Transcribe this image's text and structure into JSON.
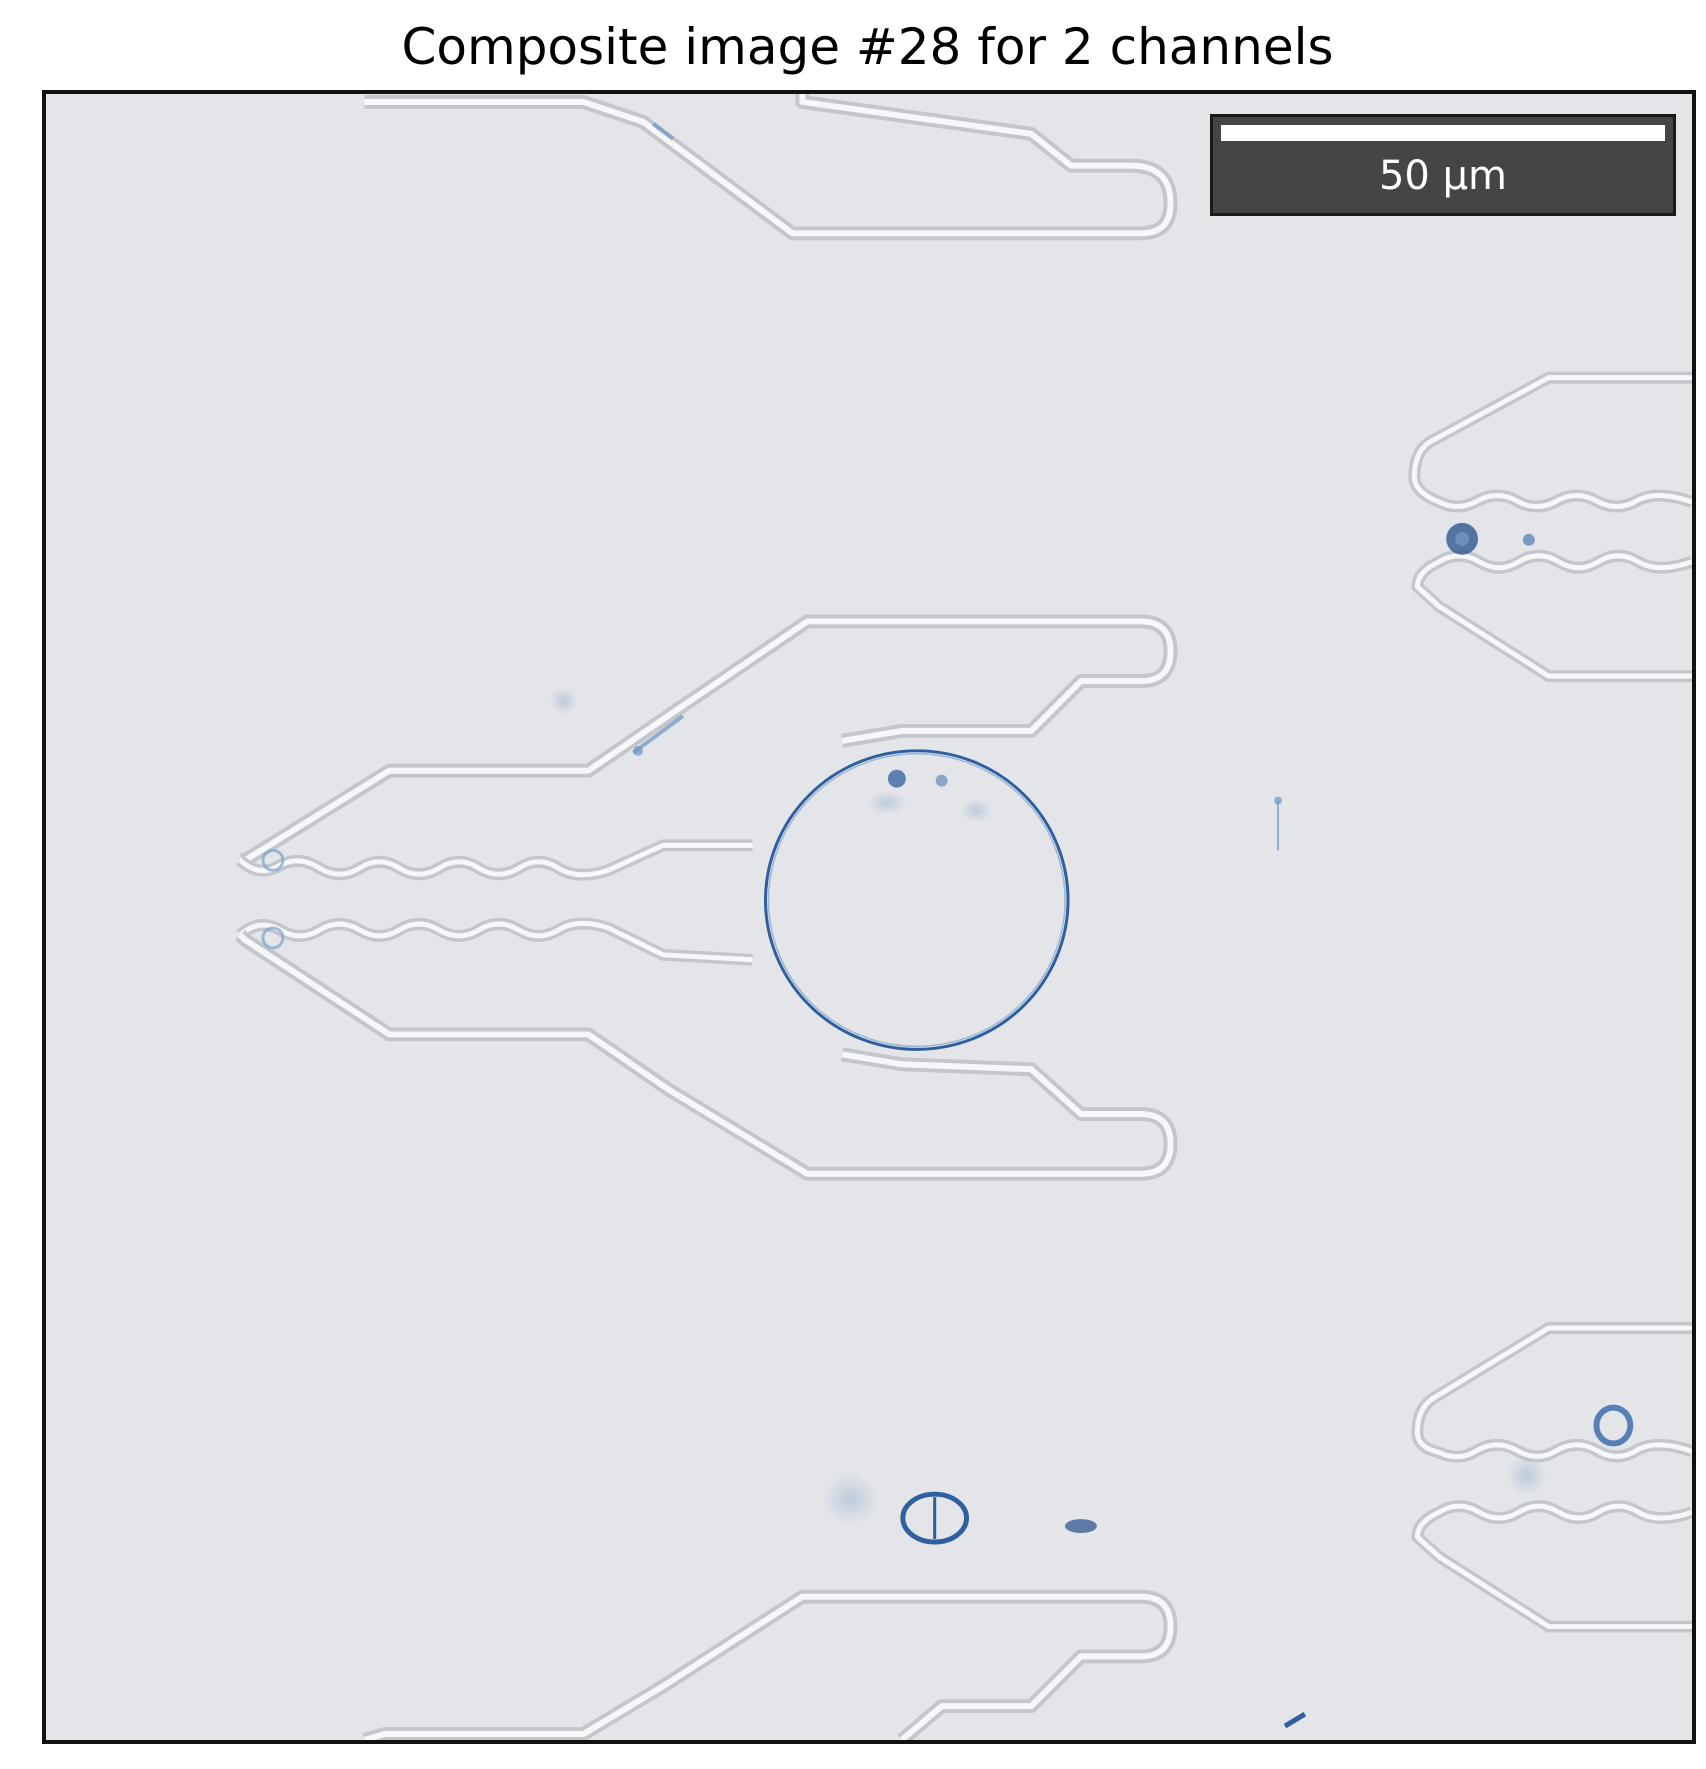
{
  "title": "Composite image #28 for 2 channels",
  "scale_bar": {
    "label": "50 µm"
  },
  "colors": {
    "background": "#e3e5e8",
    "channel_outline": "#f6f7f9",
    "channel_shadow": "#c3c7cc",
    "cell_stain": "#2f5f9e",
    "frame": "#111111",
    "scalebar_box": "#454545"
  }
}
